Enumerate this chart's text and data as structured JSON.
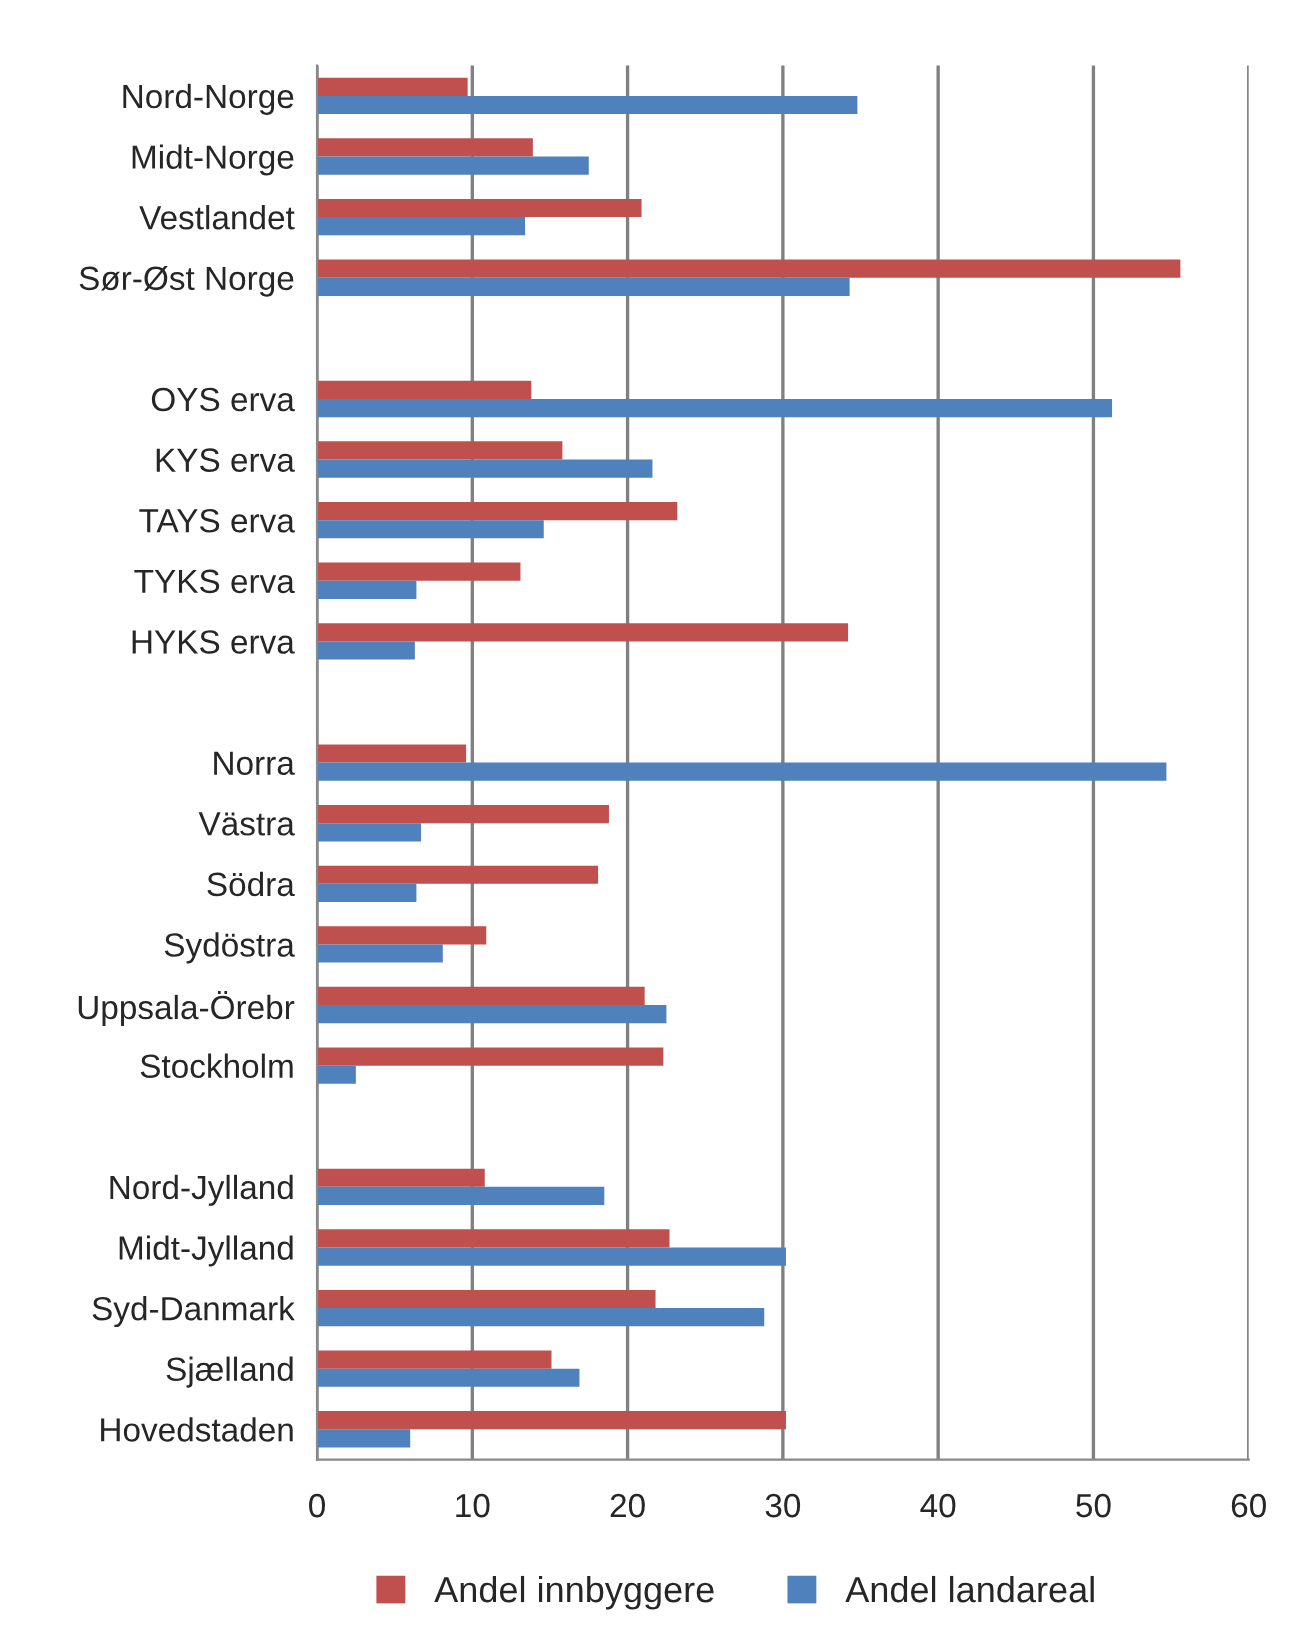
{
  "chart_data": {
    "type": "bar",
    "orientation": "horizontal",
    "categories": [
      "Nord-Norge",
      "Midt-Norge",
      "Vestlandet",
      "Sør-Øst Norge",
      null,
      "OYS erva",
      "KYS erva",
      "TAYS erva",
      "TYKS erva",
      "HYKS erva",
      null,
      "Norra",
      "Västra",
      "Södra",
      "Sydöstra",
      "Uppsala-Örebr",
      "Stockholm",
      null,
      "Nord-Jylland",
      "Midt-Jylland",
      "Syd-Danmark",
      "Sjælland",
      "Hovedstaden"
    ],
    "series": [
      {
        "name": "Andel innbyggere",
        "color": "#c0504d",
        "values": [
          9.7,
          13.9,
          20.9,
          55.6,
          null,
          13.8,
          15.8,
          23.2,
          13.1,
          34.2,
          null,
          9.6,
          18.8,
          18.1,
          10.9,
          21.1,
          22.3,
          null,
          10.8,
          22.7,
          21.8,
          15.1,
          30.2
        ]
      },
      {
        "name": "Andel landareal",
        "color": "#4f81bd",
        "values": [
          34.8,
          17.5,
          13.4,
          34.3,
          null,
          51.2,
          21.6,
          14.6,
          6.4,
          6.3,
          null,
          54.7,
          6.7,
          6.4,
          8.1,
          22.5,
          2.5,
          null,
          18.5,
          30.2,
          28.8,
          16.9,
          6.0
        ]
      }
    ],
    "xlim": [
      0,
      60
    ],
    "xticks": [
      0,
      10,
      20,
      30,
      40,
      50,
      60
    ],
    "grid": "x",
    "legend": "bottom"
  }
}
